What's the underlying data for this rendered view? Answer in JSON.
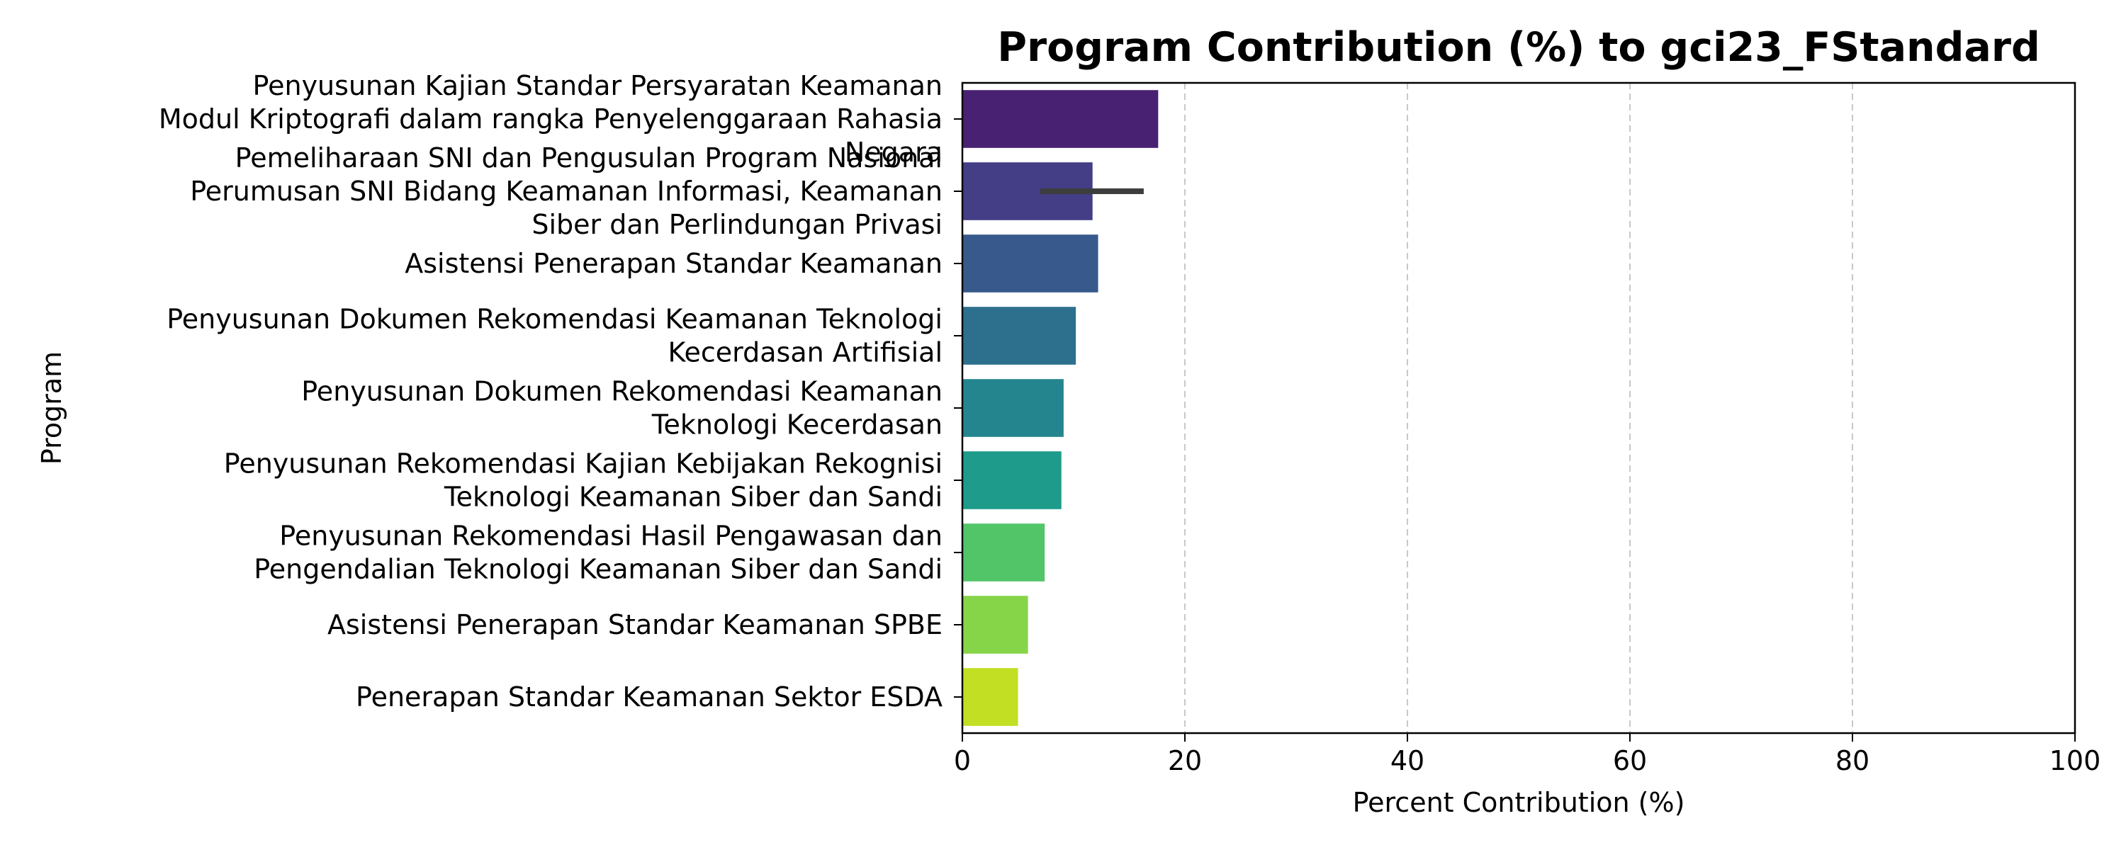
{
  "chart_data": {
    "type": "bar",
    "orientation": "horizontal",
    "title": "Program Contribution (%) to gci23_FStandard",
    "xlabel": "Percent Contribution (%)",
    "ylabel": "Program",
    "xlim": [
      0,
      100
    ],
    "xticks": [
      "0",
      "20",
      "40",
      "60",
      "80",
      "100"
    ],
    "grid": "x-axis dashed",
    "categories": [
      [
        "Penyusunan Kajian Standar Persyaratan Keamanan",
        "Modul Kriptografi dalam rangka Penyelenggaraan Rahasia",
        "Negara"
      ],
      [
        "Pemeliharaan SNI dan Pengusulan Program Nasional",
        "Perumusan SNI Bidang Keamanan Informasi, Keamanan",
        "Siber dan Perlindungan Privasi"
      ],
      [
        "Asistensi Penerapan Standar Keamanan"
      ],
      [
        "Penyusunan Dokumen Rekomendasi Keamanan Teknologi",
        "Kecerdasan Artifisial"
      ],
      [
        "Penyusunan Dokumen Rekomendasi Keamanan",
        "Teknologi Kecerdasan"
      ],
      [
        "Penyusunan Rekomendasi Kajian Kebijakan Rekognisi",
        "Teknologi Keamanan Siber dan Sandi"
      ],
      [
        "Penyusunan Rekomendasi Hasil Pengawasan dan",
        "Pengendalian Teknologi Keamanan Siber dan Sandi"
      ],
      [
        "Asistensi Penerapan Standar Keamanan SPBE"
      ],
      [
        "Penerapan Standar Keamanan Sektor ESDA"
      ]
    ],
    "values": [
      17.6,
      11.7,
      12.2,
      10.2,
      9.1,
      8.9,
      7.4,
      5.9,
      5.0
    ],
    "error_bars": [
      null,
      [
        7.0,
        16.3
      ],
      null,
      null,
      null,
      null,
      null,
      null,
      null
    ],
    "colors": [
      "#482173",
      "#433e85",
      "#38598c",
      "#2d708e",
      "#25858e",
      "#1e9b8a",
      "#2ab07f",
      "#52c569",
      "#86d549",
      "#c2df23"
    ],
    "bar_colors": [
      "#482173",
      "#433e85",
      "#38598c",
      "#2d708e",
      "#25858e",
      "#1e9b8a",
      "#52c569",
      "#86d549",
      "#c2df23"
    ]
  }
}
